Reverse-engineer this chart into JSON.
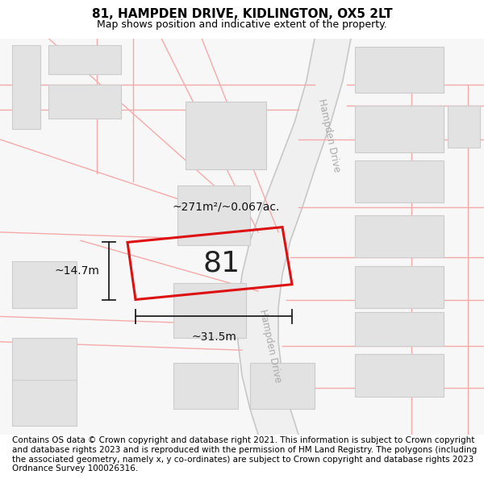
{
  "title": "81, HAMPDEN DRIVE, KIDLINGTON, OX5 2LT",
  "subtitle": "Map shows position and indicative extent of the property.",
  "footer": "Contains OS data © Crown copyright and database right 2021. This information is subject to Crown copyright and database rights 2023 and is reproduced with the permission of HM Land Registry. The polygons (including the associated geometry, namely x, y co-ordinates) are subject to Crown copyright and database rights 2023 Ordnance Survey 100026316.",
  "bg_color": "#f7f7f7",
  "plot_edge_color": "#dd1111",
  "plot_edge_width": 2.2,
  "neighbor_fill": "#e2e2e2",
  "neighbor_edge": "#cccccc",
  "road_line_color": "#f5aaaa",
  "hampden_road_color": "#d8d8d8",
  "title_fontsize": 11,
  "subtitle_fontsize": 9,
  "footer_fontsize": 7.5,
  "label_81_fontsize": 26,
  "annotation_fontsize": 10,
  "hampden_drive_label": "Hampden Drive",
  "area_label": "~271m²/~0.067ac.",
  "dim_width": "~31.5m",
  "dim_height": "~14.7m"
}
